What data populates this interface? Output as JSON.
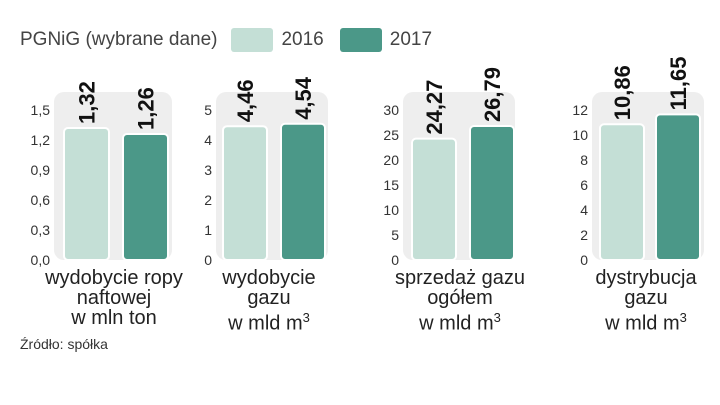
{
  "legend": {
    "title": "PGNiG (wybrane dane)",
    "series": [
      {
        "name": "2016",
        "color": "#c4dfd6"
      },
      {
        "name": "2017",
        "color": "#4b9888"
      }
    ]
  },
  "colors": {
    "panel_bg": "#eeeeee",
    "bar_outline": "#ffffff",
    "axis_text": "#333333",
    "value_text": "#111111"
  },
  "chart_data": [
    {
      "type": "bar",
      "categories": [
        "2016",
        "2017"
      ],
      "values": [
        1.32,
        1.26
      ],
      "value_labels": [
        "1,32",
        "1,26"
      ],
      "ylim": [
        0,
        1.5
      ],
      "yticks": [
        "0,0",
        "0,3",
        "0,6",
        "0,9",
        "1,2",
        "1,5"
      ],
      "ytick_values": [
        0,
        0.3,
        0.6,
        0.9,
        1.2,
        1.5
      ],
      "xlabel_lines": [
        "wydobycie ropy",
        "naftowej",
        "w mln ton"
      ],
      "superscript": ""
    },
    {
      "type": "bar",
      "categories": [
        "2016",
        "2017"
      ],
      "values": [
        4.46,
        4.54
      ],
      "value_labels": [
        "4,46",
        "4,54"
      ],
      "ylim": [
        0,
        5
      ],
      "yticks": [
        "0",
        "1",
        "2",
        "3",
        "4",
        "5"
      ],
      "ytick_values": [
        0,
        1,
        2,
        3,
        4,
        5
      ],
      "xlabel_lines": [
        "wydobycie",
        "gazu",
        "w mld m"
      ],
      "superscript": "3"
    },
    {
      "type": "bar",
      "categories": [
        "2016",
        "2017"
      ],
      "values": [
        24.27,
        26.79
      ],
      "value_labels": [
        "24,27",
        "26,79"
      ],
      "ylim": [
        0,
        30
      ],
      "yticks": [
        "0",
        "5",
        "10",
        "15",
        "20",
        "25",
        "30"
      ],
      "ytick_values": [
        0,
        5,
        10,
        15,
        20,
        25,
        30
      ],
      "xlabel_lines": [
        "sprzedaż gazu",
        "ogółem",
        "w mld m"
      ],
      "superscript": "3"
    },
    {
      "type": "bar",
      "categories": [
        "2016",
        "2017"
      ],
      "values": [
        10.86,
        11.65
      ],
      "value_labels": [
        "10,86",
        "11,65"
      ],
      "ylim": [
        0,
        12
      ],
      "yticks": [
        "0",
        "2",
        "4",
        "6",
        "8",
        "10",
        "12"
      ],
      "ytick_values": [
        0,
        2,
        4,
        6,
        8,
        10,
        12
      ],
      "xlabel_lines": [
        "dystrybucja",
        "gazu",
        "w mld m"
      ],
      "superscript": "3"
    }
  ],
  "source": "Źródło: spółka"
}
